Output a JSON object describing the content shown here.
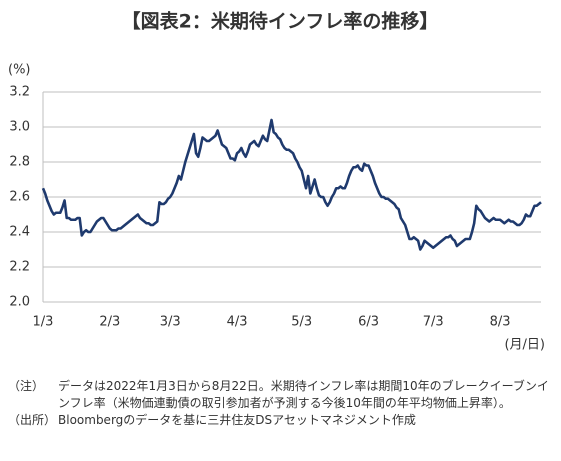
{
  "chart_data": {
    "type": "line",
    "title": "【図表2：米期待インフレ率の推移】",
    "y_label": "(%)",
    "x_label": "(月/日)",
    "categories": [
      "1/3",
      null,
      null,
      null,
      null,
      null,
      null,
      null,
      null,
      null,
      null,
      null,
      null,
      null,
      null,
      null,
      null,
      null,
      null,
      null,
      null,
      null,
      null,
      null,
      null,
      null,
      null,
      null,
      null,
      null,
      null,
      "2/3",
      null,
      null,
      null,
      null,
      null,
      null,
      null,
      null,
      null,
      null,
      null,
      null,
      null,
      null,
      null,
      null,
      null,
      null,
      null,
      null,
      null,
      null,
      null,
      null,
      null,
      null,
      null,
      "3/3",
      null,
      null,
      null,
      null,
      null,
      null,
      null,
      null,
      null,
      null,
      null,
      null,
      null,
      null,
      null,
      null,
      null,
      null,
      null,
      null,
      null,
      null,
      null,
      null,
      null,
      null,
      null,
      null,
      null,
      null,
      "4/3",
      null,
      null,
      null,
      null,
      null,
      null,
      null,
      null,
      null,
      null,
      null,
      null,
      null,
      null,
      null,
      null,
      null,
      null,
      null,
      null,
      null,
      null,
      null,
      null,
      null,
      null,
      null,
      null,
      null,
      "5/3",
      null,
      null,
      null,
      null,
      null,
      null,
      null,
      null,
      null,
      null,
      null,
      null,
      null,
      null,
      null,
      null,
      null,
      null,
      null,
      null,
      null,
      null,
      null,
      null,
      null,
      null,
      null,
      null,
      null,
      null,
      "6/3",
      null,
      null,
      null,
      null,
      null,
      null,
      null,
      null,
      null,
      null,
      null,
      null,
      null,
      null,
      null,
      null,
      null,
      null,
      null,
      null,
      null,
      null,
      null,
      null,
      null,
      null,
      null,
      null,
      null,
      "7/3",
      null,
      null,
      null,
      null,
      null,
      null,
      null,
      null,
      null,
      null,
      null,
      null,
      null,
      null,
      null,
      null,
      null,
      null,
      null,
      null,
      null,
      null,
      null,
      null,
      null,
      null,
      null,
      null,
      null,
      null,
      "8/3",
      null,
      null,
      null,
      null,
      null,
      null,
      null,
      null,
      null,
      null,
      null,
      null,
      null,
      null,
      null,
      null,
      null,
      null,
      null
    ],
    "series": [
      {
        "color": "#1f3a6e",
        "values": [
          2.65,
          2.62,
          2.58,
          2.55,
          2.52,
          2.5,
          2.51,
          2.51,
          2.51,
          2.54,
          2.58,
          2.48,
          2.48,
          2.47,
          2.47,
          2.47,
          2.48,
          2.48,
          2.38,
          2.4,
          2.41,
          2.4,
          2.4,
          2.42,
          2.44,
          2.46,
          2.47,
          2.48,
          2.48,
          2.46,
          2.44,
          2.42,
          2.41,
          2.41,
          2.41,
          2.42,
          2.42,
          2.43,
          2.44,
          2.45,
          2.46,
          2.47,
          2.48,
          2.49,
          2.5,
          2.48,
          2.47,
          2.46,
          2.45,
          2.45,
          2.44,
          2.44,
          2.45,
          2.46,
          2.57,
          2.56,
          2.56,
          2.57,
          2.59,
          2.6,
          2.62,
          2.65,
          2.68,
          2.72,
          2.7,
          2.75,
          2.8,
          2.84,
          2.88,
          2.92,
          2.96,
          2.85,
          2.83,
          2.88,
          2.94,
          2.93,
          2.92,
          2.92,
          2.93,
          2.94,
          2.95,
          2.98,
          2.94,
          2.9,
          2.89,
          2.88,
          2.85,
          2.82,
          2.82,
          2.81,
          2.85,
          2.86,
          2.88,
          2.85,
          2.83,
          2.86,
          2.9,
          2.91,
          2.92,
          2.9,
          2.89,
          2.92,
          2.95,
          2.93,
          2.92,
          2.98,
          3.04,
          2.97,
          2.96,
          2.94,
          2.93,
          2.9,
          2.88,
          2.87,
          2.87,
          2.86,
          2.85,
          2.82,
          2.8,
          2.77,
          2.75,
          2.7,
          2.65,
          2.72,
          2.62,
          2.66,
          2.7,
          2.65,
          2.61,
          2.6,
          2.6,
          2.57,
          2.55,
          2.57,
          2.6,
          2.62,
          2.65,
          2.65,
          2.66,
          2.65,
          2.65,
          2.68,
          2.72,
          2.75,
          2.77,
          2.77,
          2.78,
          2.76,
          2.75,
          2.79,
          2.78,
          2.78,
          2.75,
          2.72,
          2.68,
          2.65,
          2.62,
          2.6,
          2.6,
          2.59,
          2.59,
          2.58,
          2.57,
          2.56,
          2.54,
          2.53,
          2.48,
          2.46,
          2.44,
          2.4,
          2.36,
          2.36,
          2.37,
          2.36,
          2.35,
          2.3,
          2.32,
          2.35,
          2.34,
          2.33,
          2.32,
          2.31,
          2.32,
          2.33,
          2.34,
          2.35,
          2.36,
          2.37,
          2.37,
          2.38,
          2.36,
          2.35,
          2.32,
          2.33,
          2.34,
          2.35,
          2.36,
          2.36,
          2.36,
          2.4,
          2.45,
          2.55,
          2.53,
          2.52,
          2.5,
          2.48,
          2.47,
          2.46,
          2.47,
          2.48,
          2.47,
          2.47,
          2.47,
          2.46,
          2.45,
          2.46,
          2.47,
          2.46,
          2.46,
          2.45,
          2.44,
          2.44,
          2.45,
          2.47,
          2.5,
          2.49,
          2.49,
          2.52,
          2.55,
          2.55,
          2.56,
          2.57
        ]
      }
    ],
    "ylim": [
      2.0,
      3.2
    ],
    "yticks": [
      {
        "value": 2.0,
        "label": "2.0"
      },
      2.2,
      2.4,
      2.6,
      2.8,
      {
        "value": 3.0,
        "label": "3.0"
      },
      3.2
    ],
    "grid": true
  },
  "notes": [
    {
      "label": "（注）",
      "text": "データは2022年1月3日から8月22日。米期待インフレ率は期間10年のブレークイーブンインフレ率（米物価連動債の取引参加者が予測する今後10年間の年平均物価上昇率）。"
    },
    {
      "label": "（出所）",
      "text": "Bloombergのデータを基に三井住友DSアセットマネジメント作成"
    }
  ]
}
